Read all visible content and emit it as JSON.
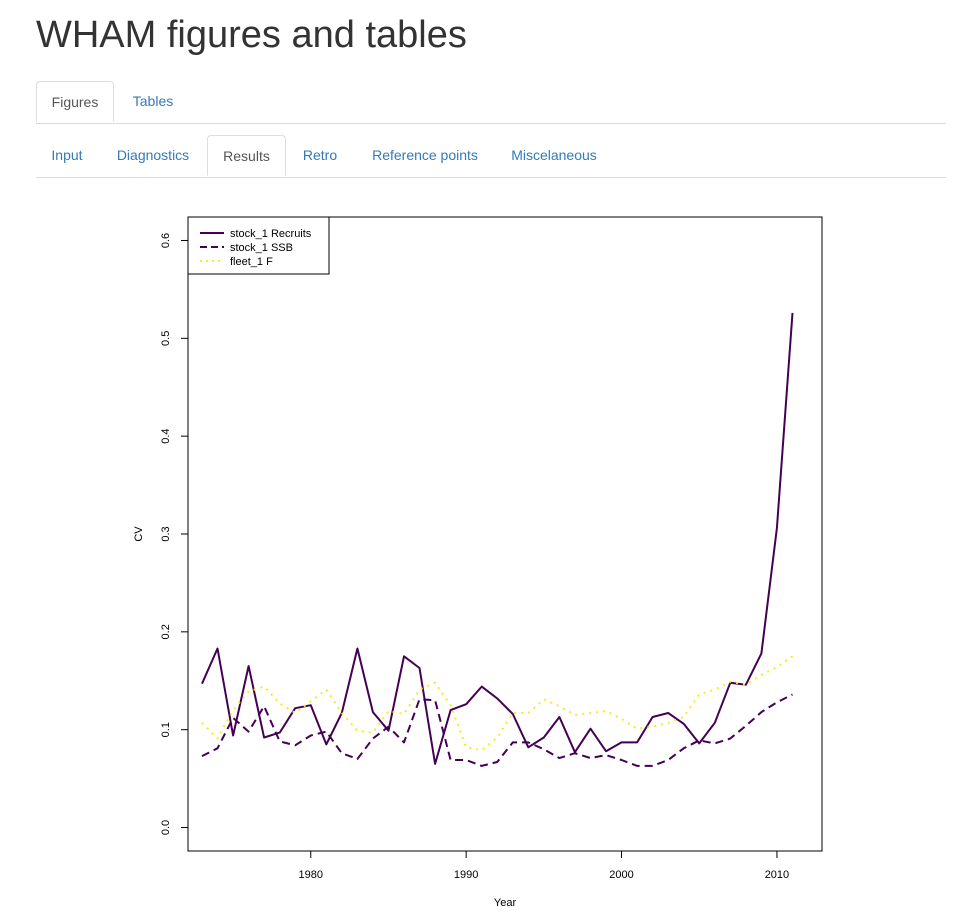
{
  "page": {
    "title": "WHAM figures and tables"
  },
  "main_tabs": [
    {
      "label": "Figures",
      "active": true
    },
    {
      "label": "Tables",
      "active": false
    }
  ],
  "sub_tabs": [
    {
      "label": "Input",
      "active": false
    },
    {
      "label": "Diagnostics",
      "active": false
    },
    {
      "label": "Results",
      "active": true
    },
    {
      "label": "Retro",
      "active": false
    },
    {
      "label": "Reference points",
      "active": false
    },
    {
      "label": "Miscelaneous",
      "active": false
    }
  ],
  "chart_data": {
    "type": "line",
    "title": "",
    "xlabel": "Year",
    "ylabel": "CV",
    "xlim": [
      1972.1,
      2012.9
    ],
    "ylim": [
      -0.024,
      0.624
    ],
    "xticks": [
      1980,
      1990,
      2000,
      2010
    ],
    "yticks": [
      0.0,
      0.1,
      0.2,
      0.3,
      0.4,
      0.5,
      0.6
    ],
    "ytick_labels": [
      "0.0",
      "0.1",
      "0.2",
      "0.3",
      "0.4",
      "0.5",
      "0.6"
    ],
    "grid": false,
    "legend_position": "top-left",
    "x": [
      1973,
      1974,
      1975,
      1976,
      1977,
      1978,
      1979,
      1980,
      1981,
      1982,
      1983,
      1984,
      1985,
      1986,
      1987,
      1988,
      1989,
      1990,
      1991,
      1992,
      1993,
      1994,
      1995,
      1996,
      1997,
      1998,
      1999,
      2000,
      2001,
      2002,
      2003,
      2004,
      2005,
      2006,
      2007,
      2008,
      2009,
      2010,
      2011
    ],
    "series": [
      {
        "name": "stock_1 Recruits",
        "color": "#440154",
        "dash": "solid",
        "values": [
          0.147,
          0.183,
          0.094,
          0.165,
          0.092,
          0.097,
          0.122,
          0.125,
          0.085,
          0.117,
          0.183,
          0.118,
          0.099,
          0.175,
          0.163,
          0.065,
          0.12,
          0.126,
          0.144,
          0.132,
          0.116,
          0.082,
          0.092,
          0.113,
          0.077,
          0.101,
          0.078,
          0.087,
          0.087,
          0.113,
          0.117,
          0.106,
          0.086,
          0.107,
          0.148,
          0.146,
          0.178,
          0.306,
          0.526
        ]
      },
      {
        "name": "stock_1 SSB",
        "color": "#440154",
        "dash": "dashed",
        "values": [
          0.073,
          0.081,
          0.112,
          0.098,
          0.124,
          0.088,
          0.084,
          0.094,
          0.098,
          0.076,
          0.07,
          0.091,
          0.103,
          0.087,
          0.131,
          0.13,
          0.069,
          0.069,
          0.063,
          0.067,
          0.087,
          0.087,
          0.08,
          0.071,
          0.076,
          0.071,
          0.074,
          0.069,
          0.063,
          0.063,
          0.069,
          0.081,
          0.089,
          0.086,
          0.091,
          0.104,
          0.118,
          0.128,
          0.136
        ]
      },
      {
        "name": "fleet_1 F",
        "color": "#FDE725",
        "dash": "dotted",
        "values": [
          0.107,
          0.091,
          0.12,
          0.139,
          0.144,
          0.127,
          0.117,
          0.129,
          0.141,
          0.117,
          0.099,
          0.097,
          0.119,
          0.116,
          0.141,
          0.148,
          0.125,
          0.082,
          0.079,
          0.092,
          0.117,
          0.117,
          0.131,
          0.124,
          0.115,
          0.117,
          0.119,
          0.111,
          0.101,
          0.103,
          0.107,
          0.113,
          0.136,
          0.141,
          0.149,
          0.146,
          0.156,
          0.164,
          0.175
        ]
      }
    ]
  }
}
